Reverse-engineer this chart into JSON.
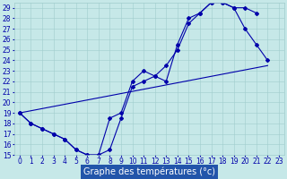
{
  "xlabel": "Graphe des températures (°c)",
  "bg_color": "#c6e8e8",
  "line_color": "#0000aa",
  "ylim": [
    15,
    29.5
  ],
  "xlim": [
    -0.5,
    23.5
  ],
  "yticks": [
    15,
    16,
    17,
    18,
    19,
    20,
    21,
    22,
    23,
    24,
    25,
    26,
    27,
    28,
    29
  ],
  "xticks": [
    0,
    1,
    2,
    3,
    4,
    5,
    6,
    7,
    8,
    9,
    10,
    11,
    12,
    13,
    14,
    15,
    16,
    17,
    18,
    19,
    20,
    21,
    22,
    23
  ],
  "curve1_x": [
    0,
    1,
    2,
    3,
    4,
    5,
    6,
    7,
    8,
    9,
    10,
    11,
    12,
    13,
    14,
    15,
    16,
    17,
    18,
    19,
    20,
    21,
    22
  ],
  "curve1_y": [
    19.0,
    18.0,
    17.5,
    17.0,
    16.5,
    15.5,
    15.0,
    15.0,
    15.5,
    18.5,
    21.5,
    22.0,
    22.5,
    23.5,
    25.0,
    27.5,
    28.5,
    29.5,
    29.5,
    29.0,
    27.0,
    25.5,
    24.0
  ],
  "curve2_x": [
    0,
    1,
    2,
    3,
    4,
    5,
    6,
    7,
    8,
    9,
    10,
    11,
    12,
    13,
    14,
    15,
    16,
    17,
    18,
    19,
    20,
    21
  ],
  "curve2_y": [
    19.0,
    18.0,
    17.5,
    17.0,
    16.5,
    15.5,
    15.0,
    15.0,
    18.5,
    19.0,
    22.0,
    23.0,
    22.5,
    22.0,
    25.5,
    28.0,
    28.5,
    29.5,
    29.5,
    29.0,
    29.0,
    28.5
  ],
  "curve3_x": [
    0,
    22
  ],
  "curve3_y": [
    19.0,
    23.5
  ],
  "gridcolor": "#a0cccc",
  "tick_fontsize": 5.5,
  "xlabel_fontsize": 7,
  "xlabel_bg": "#2255aa"
}
